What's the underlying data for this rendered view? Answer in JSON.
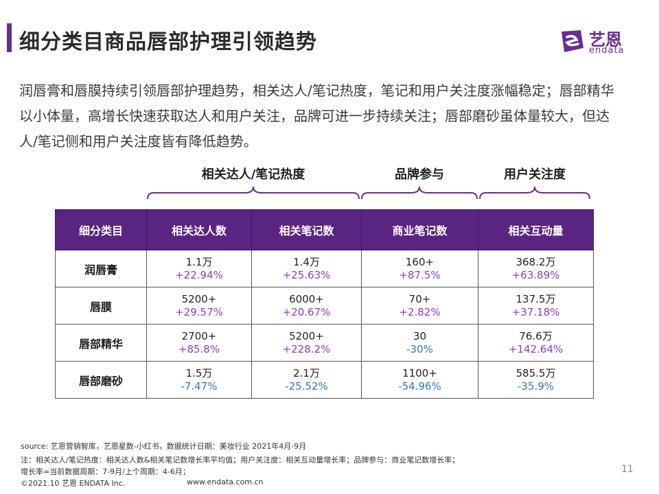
{
  "header": {
    "title": "细分类目商品唇部护理引领趋势",
    "logo_cn": "艺恩",
    "logo_en": "endata",
    "accent_color": "#6b2c91"
  },
  "intro": "润唇膏和唇膜持续引领唇部护理趋势，相关达人/笔记热度，笔记和用户关注度涨幅稳定；唇部精华以小体量，高增长快速获取达人和用户关注，品牌可进一步持续关注；唇部磨砂虽体量较大，但达人/笔记侧和用户关注度皆有降低趋势。",
  "groups": {
    "kol_heat": "相关达人/笔记热度",
    "brand": "品牌参与",
    "user_focus": "用户关注度"
  },
  "table": {
    "headers": [
      "细分类目",
      "相关达人数",
      "相关笔记数",
      "商业笔记数",
      "相关互动量"
    ],
    "header_color": "#5a2483",
    "positive_color": "#8e3cc6",
    "negative_color": "#2f78c4",
    "rows": [
      {
        "category": "润唇膏",
        "cells": [
          {
            "value": "1.1万",
            "change": "+22.94%"
          },
          {
            "value": "1.4万",
            "change": "+25.63%"
          },
          {
            "value": "160+",
            "change": "+87.5%"
          },
          {
            "value": "368.2万",
            "change": "+63.89%"
          }
        ]
      },
      {
        "category": "唇膜",
        "cells": [
          {
            "value": "5200+",
            "change": "+29.57%"
          },
          {
            "value": "6000+",
            "change": "+20.67%"
          },
          {
            "value": "70+",
            "change": "+2.82%"
          },
          {
            "value": "137.5万",
            "change": "+37.18%"
          }
        ]
      },
      {
        "category": "唇部精华",
        "cells": [
          {
            "value": "2700+",
            "change": "+85.8%"
          },
          {
            "value": "5200+",
            "change": "+228.2%"
          },
          {
            "value": "30",
            "change": "-30%"
          },
          {
            "value": "76.6万",
            "change": "+142.64%"
          }
        ]
      },
      {
        "category": "唇部磨砂",
        "cells": [
          {
            "value": "1.5万",
            "change": "-7.47%"
          },
          {
            "value": "2.1万",
            "change": "-25.52%"
          },
          {
            "value": "1100+",
            "change": "-54.96%"
          },
          {
            "value": "585.5万",
            "change": "-35.9%"
          }
        ]
      }
    ]
  },
  "footer": {
    "source": "source: 艺恩营销智库，艺恩星数-小红书，数据统计日期：美妆行业 2021年4月-9月",
    "note1": "注：相关达人/笔记热度：相关达人数&相关笔记数增长率平均值；用户关注度：相关互动量增长率；品牌参与：商业笔记数增长率；",
    "note2": "增长率=当前数据周期：7-9月/上个周期：4-6月；",
    "copyright": "©2021.10 艺恩 ENDATA Inc.",
    "website": "www.endata.com.cn",
    "page_number": "11"
  }
}
